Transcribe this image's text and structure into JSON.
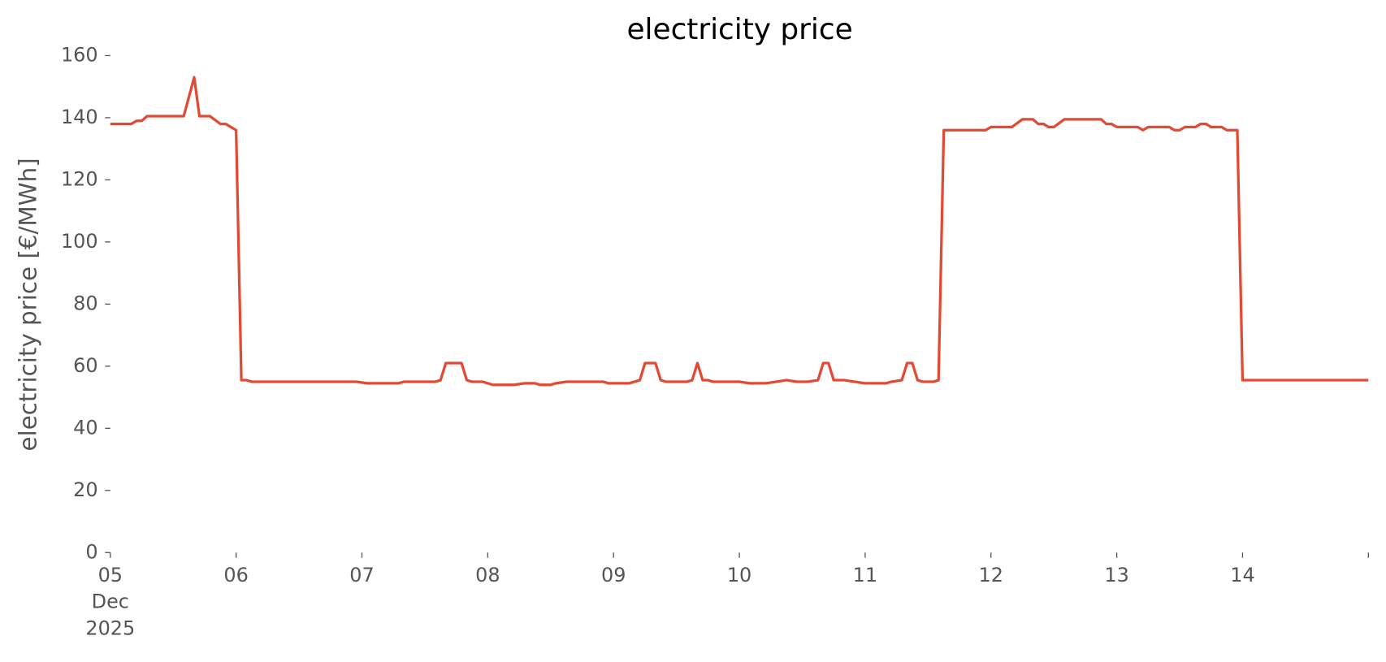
{
  "chart_data": {
    "type": "line",
    "title": "electricity price",
    "ylabel": "electricity price [€/MWh]",
    "color": "#e24a33",
    "x": [
      "2025-12-05T00:00",
      "2025-12-05T04:00",
      "2025-12-05T05:00",
      "2025-12-05T06:00",
      "2025-12-05T07:00",
      "2025-12-05T14:00",
      "2025-12-05T16:00",
      "2025-12-05T17:00",
      "2025-12-05T19:00",
      "2025-12-05T21:00",
      "2025-12-05T22:00",
      "2025-12-06T00:00",
      "2025-12-06T01:00",
      "2025-12-06T02:00",
      "2025-12-06T03:00",
      "2025-12-06T23:00",
      "2025-12-07T01:00",
      "2025-12-07T07:00",
      "2025-12-07T08:00",
      "2025-12-07T14:00",
      "2025-12-07T15:00",
      "2025-12-07T16:00",
      "2025-12-07T19:00",
      "2025-12-07T20:00",
      "2025-12-07T21:00",
      "2025-12-07T23:00",
      "2025-12-08T01:00",
      "2025-12-08T05:00",
      "2025-12-08T07:00",
      "2025-12-08T09:00",
      "2025-12-08T10:00",
      "2025-12-08T12:00",
      "2025-12-08T13:00",
      "2025-12-08T15:00",
      "2025-12-08T22:00",
      "2025-12-08T23:00",
      "2025-12-09T03:00",
      "2025-12-09T04:00",
      "2025-12-09T05:00",
      "2025-12-09T06:00",
      "2025-12-09T08:00",
      "2025-12-09T09:00",
      "2025-12-09T10:00",
      "2025-12-09T14:00",
      "2025-12-09T15:00",
      "2025-12-09T16:00",
      "2025-12-09T17:00",
      "2025-12-09T18:00",
      "2025-12-09T19:00",
      "2025-12-10T00:00",
      "2025-12-10T02:00",
      "2025-12-10T05:00",
      "2025-12-10T07:00",
      "2025-12-10T09:00",
      "2025-12-10T11:00",
      "2025-12-10T13:00",
      "2025-12-10T15:00",
      "2025-12-10T16:00",
      "2025-12-10T17:00",
      "2025-12-10T18:00",
      "2025-12-10T20:00",
      "2025-12-10T22:00",
      "2025-12-11T00:00",
      "2025-12-11T04:00",
      "2025-12-11T05:00",
      "2025-12-11T07:00",
      "2025-12-11T08:00",
      "2025-12-11T09:00",
      "2025-12-11T10:00",
      "2025-12-11T11:00",
      "2025-12-11T13:00",
      "2025-12-11T14:00",
      "2025-12-11T15:00",
      "2025-12-11T23:00",
      "2025-12-12T00:00",
      "2025-12-12T04:00",
      "2025-12-12T06:00",
      "2025-12-12T08:00",
      "2025-12-12T09:00",
      "2025-12-12T10:00",
      "2025-12-12T11:00",
      "2025-12-12T12:00",
      "2025-12-12T14:00",
      "2025-12-12T21:00",
      "2025-12-12T22:00",
      "2025-12-12T23:00",
      "2025-12-13T00:00",
      "2025-12-13T04:00",
      "2025-12-13T05:00",
      "2025-12-13T06:00",
      "2025-12-13T10:00",
      "2025-12-13T11:00",
      "2025-12-13T12:00",
      "2025-12-13T13:00",
      "2025-12-13T15:00",
      "2025-12-13T16:00",
      "2025-12-13T17:00",
      "2025-12-13T18:00",
      "2025-12-13T20:00",
      "2025-12-13T21:00",
      "2025-12-13T23:00",
      "2025-12-14T00:00",
      "2025-12-15T00:00"
    ],
    "values": [
      138,
      138,
      139,
      139,
      140.5,
      140.5,
      153,
      140.5,
      140.5,
      138,
      138,
      136,
      55.5,
      55.5,
      55,
      55,
      54.5,
      54.5,
      55,
      55,
      55.5,
      61,
      61,
      55.5,
      55,
      55,
      54,
      54,
      54.5,
      54.5,
      54,
      54,
      54.5,
      55,
      55,
      54.5,
      54.5,
      55,
      55.5,
      61,
      61,
      55.5,
      55,
      55,
      55.5,
      61,
      55.5,
      55.5,
      55,
      55,
      54.5,
      54.5,
      55,
      55.5,
      55,
      55,
      55.5,
      61,
      61,
      55.5,
      55.5,
      55,
      54.5,
      54.5,
      55,
      55.5,
      61,
      61,
      55.5,
      55,
      55,
      55.5,
      136,
      136,
      137,
      137,
      139.5,
      139.5,
      138,
      138,
      137,
      137,
      139.5,
      139.5,
      138,
      138,
      137,
      137,
      136,
      137,
      137,
      136,
      136,
      137,
      137,
      138,
      138,
      137,
      137,
      136,
      136,
      55.5,
      55.5
    ],
    "xlim": [
      "2025-12-05T00:00",
      "2025-12-15T00:00"
    ],
    "xticks": [
      {
        "value": "2025-12-05T00:00",
        "label": "05\nDec\n2025"
      },
      {
        "value": "2025-12-06T00:00",
        "label": "06"
      },
      {
        "value": "2025-12-07T00:00",
        "label": "07"
      },
      {
        "value": "2025-12-08T00:00",
        "label": "08"
      },
      {
        "value": "2025-12-09T00:00",
        "label": "09"
      },
      {
        "value": "2025-12-10T00:00",
        "label": "10"
      },
      {
        "value": "2025-12-11T00:00",
        "label": "11"
      },
      {
        "value": "2025-12-12T00:00",
        "label": "12"
      },
      {
        "value": "2025-12-13T00:00",
        "label": "13"
      },
      {
        "value": "2025-12-14T00:00",
        "label": "14"
      },
      {
        "value": "2025-12-15T00:00",
        "label": null
      }
    ],
    "ylim": [
      0,
      160
    ],
    "yticks": [
      0,
      20,
      40,
      60,
      80,
      100,
      120,
      140,
      160
    ],
    "grid": false
  }
}
